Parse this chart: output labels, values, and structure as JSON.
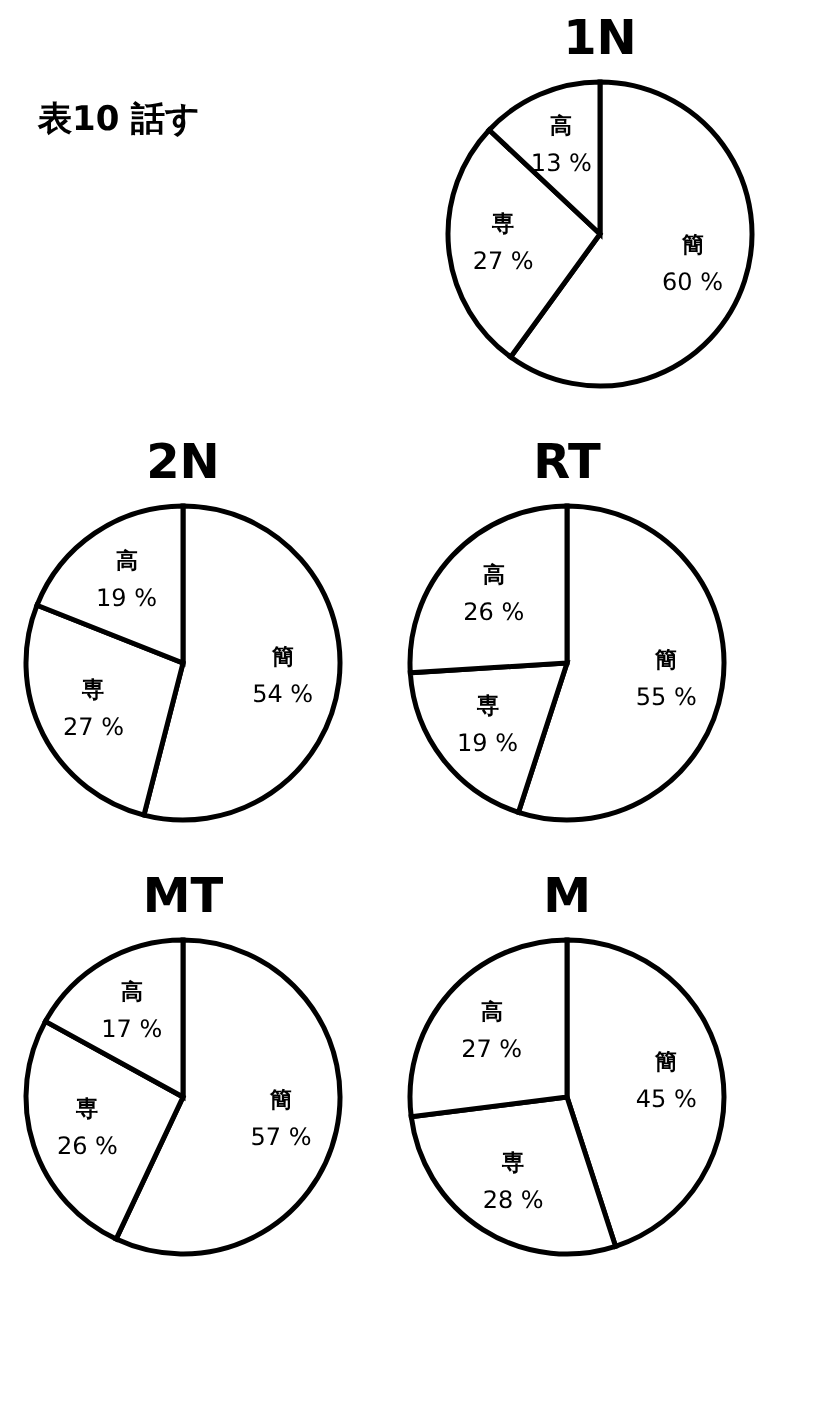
{
  "chart_data": [
    {
      "type": "pie",
      "title": "1N",
      "annotations": [
        "表10 話す"
      ],
      "categories": [
        "簡",
        "専",
        "高"
      ],
      "values": [
        60,
        27,
        13
      ],
      "value_labels": [
        "60 %",
        "27 %",
        "13 %"
      ],
      "colors": [
        "#ffffff",
        "#ffffff",
        "#ffffff"
      ]
    },
    {
      "type": "pie",
      "title": "2N",
      "categories": [
        "簡",
        "専",
        "高"
      ],
      "values": [
        54,
        27,
        19
      ],
      "value_labels": [
        "54 %",
        "27 %",
        "19 %"
      ],
      "colors": [
        "#ffffff",
        "#ffffff",
        "#ffffff"
      ]
    },
    {
      "type": "pie",
      "title": "RT",
      "categories": [
        "簡",
        "専",
        "高"
      ],
      "values": [
        55,
        19,
        26
      ],
      "value_labels": [
        "55 %",
        "19 %",
        "26 %"
      ],
      "colors": [
        "#ffffff",
        "#ffffff",
        "#ffffff"
      ]
    },
    {
      "type": "pie",
      "title": "MT",
      "categories": [
        "簡",
        "専",
        "高"
      ],
      "values": [
        57,
        26,
        17
      ],
      "value_labels": [
        "57 %",
        "26 %",
        "17 %"
      ],
      "colors": [
        "#ffffff",
        "#ffffff",
        "#ffffff"
      ]
    },
    {
      "type": "pie",
      "title": "M",
      "categories": [
        "簡",
        "専",
        "高"
      ],
      "values": [
        45,
        28,
        27
      ],
      "value_labels": [
        "45 %",
        "28 %",
        "27 %"
      ],
      "colors": [
        "#ffffff",
        "#ffffff",
        "#ffffff"
      ]
    }
  ]
}
